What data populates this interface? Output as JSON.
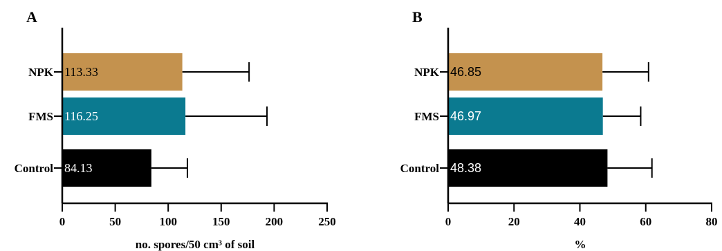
{
  "chart_data": [
    {
      "panel": "A",
      "type": "bar",
      "orientation": "horizontal",
      "categories": [
        "NPK",
        "FMS",
        "Control"
      ],
      "values": [
        113.33,
        116.25,
        84.13
      ],
      "value_labels": [
        "113.33",
        "116.25",
        "84.13"
      ],
      "error": [
        63,
        77,
        34
      ],
      "colors": [
        "#c4924e",
        "#0b7a90",
        "#000000"
      ],
      "label_colors": [
        "#000000",
        "#ffffff",
        "#ffffff"
      ],
      "xlabel": "no. spores/50 cm³ of soil",
      "xlim": [
        0,
        250
      ],
      "xticks": [
        0,
        50,
        100,
        150,
        200,
        250
      ],
      "grid": false
    },
    {
      "panel": "B",
      "type": "bar",
      "orientation": "horizontal",
      "categories": [
        "NPK",
        "FMS",
        "Control"
      ],
      "values": [
        46.85,
        46.97,
        48.38
      ],
      "value_labels": [
        "46.85",
        "46.97",
        "48.38"
      ],
      "error": [
        14,
        11.5,
        13.5
      ],
      "colors": [
        "#c4924e",
        "#0b7a90",
        "#000000"
      ],
      "label_colors": [
        "#000000",
        "#ffffff",
        "#ffffff"
      ],
      "xlabel": "%",
      "xlim": [
        0,
        80
      ],
      "xticks": [
        0,
        20,
        40,
        60,
        80
      ],
      "grid": false
    }
  ]
}
